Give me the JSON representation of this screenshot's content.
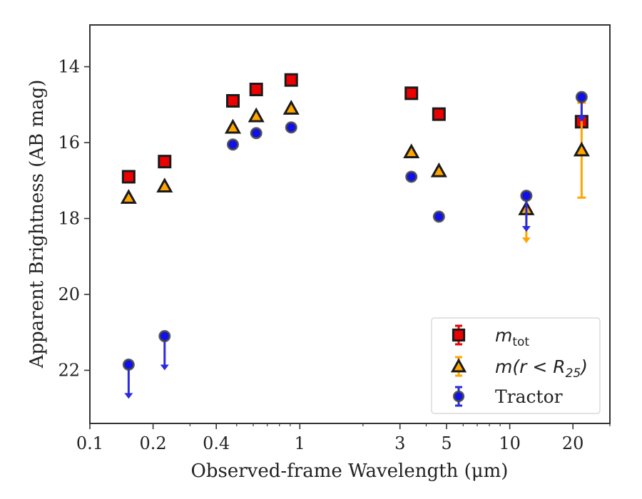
{
  "chart_data": {
    "type": "scatter",
    "xlabel": "Observed-frame Wavelength (μm)",
    "ylabel": "Apparent Brightness (AB mag)",
    "xscale": "log",
    "yinverted": true,
    "xlim": [
      0.1,
      30
    ],
    "ylim": [
      23.4,
      12.9
    ],
    "x_ticks": [
      0.1,
      0.2,
      0.4,
      1,
      3,
      5,
      10,
      20
    ],
    "x_tick_labels": [
      "0.1",
      "0.2",
      "0.4",
      "1",
      "3",
      "5",
      "10",
      "20"
    ],
    "y_ticks": [
      14,
      16,
      18,
      20,
      22
    ],
    "y_tick_labels": [
      "14",
      "16",
      "18",
      "20",
      "22"
    ],
    "legend_placement": "lower-right",
    "series": [
      {
        "name": "m_tot",
        "label_main": "m",
        "label_sub": "tot",
        "marker": "square",
        "color": "#ee0000",
        "errcolor": "#ee0000",
        "points": [
          {
            "x": 0.153,
            "y": 16.9
          },
          {
            "x": 0.227,
            "y": 16.5
          },
          {
            "x": 0.48,
            "y": 14.9
          },
          {
            "x": 0.62,
            "y": 14.6
          },
          {
            "x": 0.91,
            "y": 14.35
          },
          {
            "x": 3.4,
            "y": 14.7
          },
          {
            "x": 4.6,
            "y": 15.25
          },
          {
            "x": 22,
            "y": 15.45,
            "err_low": 15.5,
            "err_high": 15.4
          }
        ]
      },
      {
        "name": "m(r < R_25)",
        "label_main": "m(r < R",
        "label_sub": "25",
        "label_end": ")",
        "marker": "triangle",
        "color": "#ffa500",
        "errcolor": "#ffa500",
        "points": [
          {
            "x": 0.153,
            "y": 17.45
          },
          {
            "x": 0.227,
            "y": 17.15
          },
          {
            "x": 0.48,
            "y": 15.6
          },
          {
            "x": 0.62,
            "y": 15.3
          },
          {
            "x": 0.91,
            "y": 15.1
          },
          {
            "x": 3.4,
            "y": 16.25
          },
          {
            "x": 4.6,
            "y": 16.75
          },
          {
            "x": 12,
            "y": 17.75,
            "upper_limit_to": 18.65
          },
          {
            "x": 22,
            "y": 16.2,
            "err_low": 17.45,
            "err_high": 14.95
          }
        ]
      },
      {
        "name": "Tractor",
        "label_main": "Tractor",
        "marker": "circle",
        "color": "#1010ee",
        "errcolor": "#2a2ae0",
        "points": [
          {
            "x": 0.153,
            "y": 21.85,
            "upper_limit_to": 22.75
          },
          {
            "x": 0.227,
            "y": 21.1,
            "upper_limit_to": 22.0
          },
          {
            "x": 0.48,
            "y": 16.05
          },
          {
            "x": 0.62,
            "y": 15.75
          },
          {
            "x": 0.91,
            "y": 15.6
          },
          {
            "x": 3.4,
            "y": 16.9
          },
          {
            "x": 4.6,
            "y": 17.95
          },
          {
            "x": 12,
            "y": 17.4,
            "upper_limit_to": 18.35
          },
          {
            "x": 22,
            "y": 14.8,
            "upper_limit_to": 15.45
          }
        ]
      }
    ]
  }
}
